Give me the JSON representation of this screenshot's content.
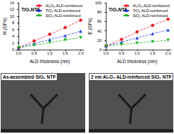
{
  "chart_data": [
    {
      "type": "line",
      "title": "TiO₂NTF",
      "x_label": "ALD thickness (nm)",
      "y_label": "H (GPa)",
      "x": [
        0,
        0.5,
        1,
        1.5,
        2
      ],
      "xlim": [
        -0.1,
        2.1
      ],
      "xticks": [
        {
          "value": 0,
          "label": "0.0"
        },
        {
          "value": 0.5,
          "label": "0.5"
        },
        {
          "value": 1,
          "label": "1.0"
        },
        {
          "value": 1.5,
          "label": "1.5"
        },
        {
          "value": 2,
          "label": "2.0"
        }
      ],
      "ylim": [
        0,
        14
      ],
      "yticks": [
        0,
        2,
        4,
        6,
        8,
        10,
        12,
        14
      ],
      "legend": "upper right",
      "line_style": "dashed",
      "series": [
        {
          "name": "Al₂O₃ ALD-reinforced",
          "color": "#e8202a",
          "marker": "circle",
          "values": [
            0.6,
            2.6,
            4.6,
            6.6,
            8.8
          ]
        },
        {
          "name": "TiO₂ ALD-reinforced",
          "color": "#2040e0",
          "marker": "triangle",
          "values": [
            0.6,
            1.8,
            3.0,
            4.2,
            5.5
          ]
        },
        {
          "name": "SiO₂ ALD-reinforced",
          "color": "#20b020",
          "marker": "triangle_down",
          "values": [
            0.6,
            1.3,
            2.1,
            2.9,
            3.6
          ]
        }
      ]
    },
    {
      "type": "line",
      "title": "TiO₂NTF",
      "x_label": "ALD thickness (nm)",
      "y_label": "E (GPa)",
      "x": [
        0,
        0.5,
        1,
        1.5,
        2
      ],
      "xlim": [
        -0.1,
        2.1
      ],
      "xticks": [
        {
          "value": 0,
          "label": "0.0"
        },
        {
          "value": 0.5,
          "label": "0.5"
        },
        {
          "value": 1,
          "label": "1.0"
        },
        {
          "value": 1.5,
          "label": "1.5"
        },
        {
          "value": 2,
          "label": "2.0"
        }
      ],
      "ylim": [
        0,
        100
      ],
      "yticks": [
        0,
        20,
        40,
        60,
        80,
        100
      ],
      "legend": "upper right",
      "line_style": "dashed",
      "series": [
        {
          "name": "Al₂O₃ ALD-reinforced",
          "color": "#e8202a",
          "marker": "circle",
          "values": [
            8,
            22,
            38,
            52,
            65
          ]
        },
        {
          "name": "TiO₂ ALD-reinforced",
          "color": "#2040e0",
          "marker": "triangle",
          "values": [
            8,
            16,
            25,
            34,
            42
          ]
        },
        {
          "name": "SiO₂ ALD-reinforced",
          "color": "#20b020",
          "marker": "triangle_down",
          "values": [
            8,
            11,
            14,
            17,
            20
          ]
        }
      ]
    }
  ],
  "images": [
    {
      "label": "As-assembled SiO₂ NTF"
    },
    {
      "label": "2 nm Al₂O₃ ALD-reinforced SiO₂ NTF"
    }
  ]
}
